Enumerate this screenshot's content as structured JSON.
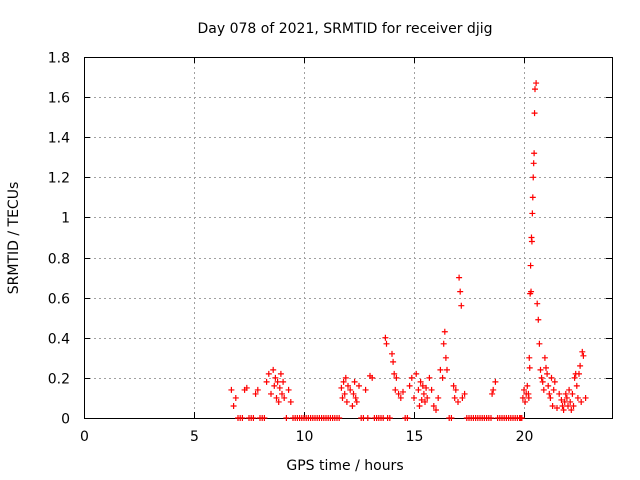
{
  "chart_data": {
    "type": "scatter",
    "title": "Day 078 of 2021, SRMTID for receiver djig",
    "xlabel": "GPS time / hours",
    "ylabel": "SRMTID / TECUs",
    "xlim": [
      0,
      24
    ],
    "ylim": [
      0,
      1.8
    ],
    "x_ticks": [
      0,
      5,
      10,
      15,
      20
    ],
    "x_tick_labels": [
      "0",
      "5",
      "10",
      "15",
      "20"
    ],
    "y_ticks": [
      0,
      0.2,
      0.4,
      0.6,
      0.8,
      1.0,
      1.2,
      1.4,
      1.6,
      1.8
    ],
    "y_tick_labels": [
      "0",
      "0.2",
      "0.4",
      "0.6",
      "0.8",
      "1",
      "1.2",
      "1.4",
      "1.6",
      "1.8"
    ],
    "grid": true,
    "marker": "+",
    "color": "#ff0000",
    "series": [
      {
        "name": "SRMTID",
        "x": [
          6.7,
          6.8,
          6.9,
          7.0,
          7.1,
          7.2,
          7.3,
          7.4,
          7.5,
          7.6,
          7.7,
          7.8,
          7.9,
          8.0,
          8.1,
          8.2,
          8.3,
          8.4,
          8.5,
          8.6,
          8.65,
          8.7,
          8.75,
          8.8,
          8.85,
          8.9,
          8.95,
          9.0,
          9.05,
          9.1,
          9.2,
          9.3,
          9.4,
          9.5,
          9.6,
          9.7,
          9.8,
          9.9,
          10.0,
          10.1,
          10.2,
          10.3,
          10.4,
          10.5,
          10.6,
          10.7,
          10.8,
          10.9,
          11.0,
          11.1,
          11.2,
          11.3,
          11.4,
          11.5,
          11.6,
          11.7,
          11.75,
          11.8,
          11.85,
          11.9,
          11.95,
          12.0,
          12.1,
          12.2,
          12.25,
          12.3,
          12.35,
          12.4,
          12.5,
          12.6,
          12.7,
          12.8,
          12.9,
          13.0,
          13.1,
          13.2,
          13.3,
          13.4,
          13.5,
          13.6,
          13.7,
          13.75,
          13.8,
          13.9,
          14.0,
          14.05,
          14.1,
          14.15,
          14.2,
          14.3,
          14.4,
          14.5,
          14.6,
          14.7,
          14.8,
          14.9,
          15.0,
          15.1,
          15.2,
          15.25,
          15.3,
          15.35,
          15.4,
          15.45,
          15.5,
          15.55,
          15.6,
          15.7,
          15.8,
          15.9,
          16.0,
          16.1,
          16.2,
          16.3,
          16.35,
          16.4,
          16.45,
          16.5,
          16.6,
          16.7,
          16.8,
          16.85,
          16.9,
          17.0,
          17.05,
          17.1,
          17.15,
          17.2,
          17.3,
          17.4,
          17.5,
          17.6,
          17.7,
          17.8,
          17.9,
          18.0,
          18.1,
          18.2,
          18.3,
          18.4,
          18.5,
          18.55,
          18.6,
          18.7,
          18.8,
          18.9,
          19.0,
          19.1,
          19.2,
          19.3,
          19.4,
          19.5,
          19.6,
          19.7,
          19.8,
          19.85,
          19.9,
          19.95,
          20.0,
          20.05,
          20.1,
          20.15,
          20.2,
          20.22,
          20.24,
          20.26,
          20.28,
          20.3,
          20.32,
          20.34,
          20.36,
          20.38,
          20.4,
          20.42,
          20.44,
          20.46,
          20.48,
          20.5,
          20.55,
          20.6,
          20.65,
          20.7,
          20.75,
          20.8,
          20.85,
          20.9,
          20.95,
          21.0,
          21.05,
          21.1,
          21.15,
          21.2,
          21.25,
          21.3,
          21.35,
          21.4,
          21.5,
          21.6,
          21.7,
          21.75,
          21.8,
          21.85,
          21.9,
          21.95,
          22.0,
          22.05,
          22.1,
          22.15,
          22.2,
          22.25,
          22.3,
          22.35,
          22.4,
          22.45,
          22.5,
          22.55,
          22.6,
          22.65,
          22.7,
          22.8
        ],
        "y": [
          0.14,
          0.06,
          0.1,
          0.0,
          0.0,
          0.0,
          0.14,
          0.15,
          0.0,
          0.0,
          0.0,
          0.12,
          0.14,
          0.0,
          0.0,
          0.0,
          0.18,
          0.22,
          0.12,
          0.24,
          0.16,
          0.2,
          0.1,
          0.18,
          0.08,
          0.15,
          0.22,
          0.12,
          0.18,
          0.1,
          0.0,
          0.14,
          0.08,
          0.0,
          0.0,
          0.0,
          0.0,
          0.0,
          0.0,
          0.0,
          0.0,
          0.0,
          0.0,
          0.0,
          0.0,
          0.0,
          0.0,
          0.0,
          0.0,
          0.0,
          0.0,
          0.0,
          0.0,
          0.0,
          0.0,
          0.15,
          0.1,
          0.18,
          0.12,
          0.2,
          0.08,
          0.16,
          0.14,
          0.06,
          0.12,
          0.18,
          0.1,
          0.08,
          0.16,
          0.0,
          0.0,
          0.14,
          0.0,
          0.21,
          0.2,
          0.0,
          0.0,
          0.0,
          0.0,
          0.0,
          0.4,
          0.37,
          0.0,
          0.0,
          0.32,
          0.28,
          0.22,
          0.14,
          0.2,
          0.12,
          0.1,
          0.13,
          0.0,
          0.0,
          0.16,
          0.2,
          0.1,
          0.22,
          0.14,
          0.06,
          0.18,
          0.09,
          0.16,
          0.12,
          0.08,
          0.15,
          0.1,
          0.2,
          0.14,
          0.06,
          0.04,
          0.1,
          0.24,
          0.2,
          0.37,
          0.43,
          0.3,
          0.24,
          0.0,
          0.0,
          0.16,
          0.1,
          0.14,
          0.08,
          0.7,
          0.63,
          0.56,
          0.1,
          0.12,
          0.0,
          0.0,
          0.0,
          0.0,
          0.0,
          0.0,
          0.0,
          0.0,
          0.0,
          0.0,
          0.0,
          0.0,
          0.12,
          0.14,
          0.18,
          0.0,
          0.0,
          0.0,
          0.0,
          0.0,
          0.0,
          0.0,
          0.0,
          0.0,
          0.0,
          0.0,
          0.0,
          0.0,
          0.1,
          0.14,
          0.08,
          0.12,
          0.16,
          0.12,
          0.1,
          0.3,
          0.25,
          0.62,
          0.76,
          0.63,
          0.9,
          0.88,
          1.02,
          1.1,
          1.2,
          1.27,
          1.32,
          1.52,
          1.64,
          1.67,
          0.57,
          0.49,
          0.37,
          0.24,
          0.2,
          0.18,
          0.14,
          0.3,
          0.25,
          0.22,
          0.16,
          0.12,
          0.1,
          0.2,
          0.06,
          0.14,
          0.18,
          0.05,
          0.12,
          0.09,
          0.06,
          0.04,
          0.08,
          0.12,
          0.1,
          0.06,
          0.14,
          0.08,
          0.04,
          0.12,
          0.06,
          0.2,
          0.22,
          0.16,
          0.1,
          0.22,
          0.26,
          0.08,
          0.33,
          0.31,
          0.1
        ]
      }
    ]
  }
}
